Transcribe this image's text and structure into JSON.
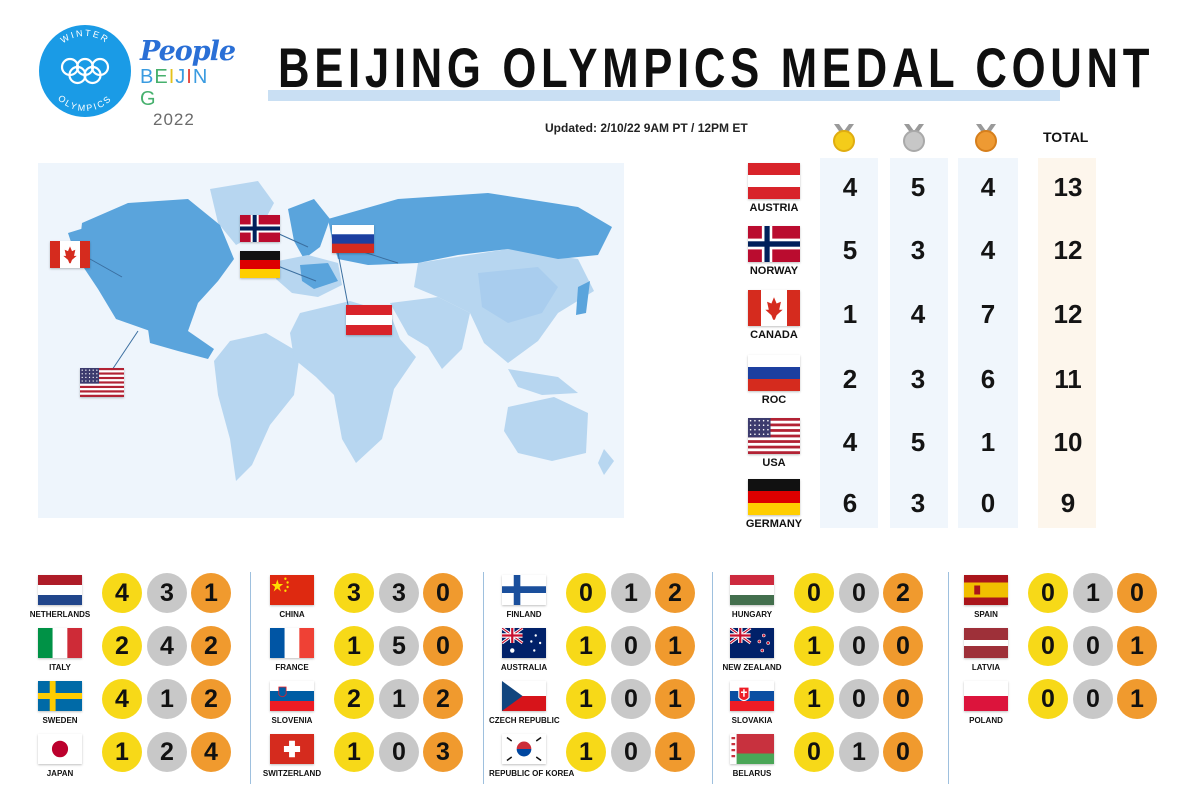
{
  "header": {
    "olympic_logo_top": "WINTER",
    "olympic_logo_bottom": "OLYMPICS",
    "brand": "People",
    "city": "BEIJING",
    "year": "2022",
    "title": "BEIJING OLYMPICS MEDAL COUNT",
    "updated": "Updated: 2/10/22 9AM PT / 12PM ET"
  },
  "colors": {
    "gold": "#f7d918",
    "silver": "#c8c8c8",
    "bronze": "#f09a2e",
    "map_land": "#b7d6f0",
    "map_highlight": "#5aa4dc",
    "accent_underline": "#c9dff3"
  },
  "table_header": {
    "gold_icon": "gold-medal-icon",
    "silver_icon": "silver-medal-icon",
    "bronze_icon": "bronze-medal-icon",
    "total_label": "TOTAL"
  },
  "top_countries": [
    {
      "name": "AUSTRIA",
      "flag": "austria",
      "gold": "4",
      "silver": "5",
      "bronze": "4",
      "total": "13"
    },
    {
      "name": "NORWAY",
      "flag": "norway",
      "gold": "5",
      "silver": "3",
      "bronze": "4",
      "total": "12"
    },
    {
      "name": "CANADA",
      "flag": "canada",
      "gold": "1",
      "silver": "4",
      "bronze": "7",
      "total": "12"
    },
    {
      "name": "ROC",
      "flag": "russia",
      "gold": "2",
      "silver": "3",
      "bronze": "6",
      "total": "11"
    },
    {
      "name": "USA",
      "flag": "usa",
      "gold": "4",
      "silver": "5",
      "bronze": "1",
      "total": "10"
    },
    {
      "name": "GERMANY",
      "flag": "germany",
      "gold": "6",
      "silver": "3",
      "bronze": "0",
      "total": "9"
    }
  ],
  "map_flags": [
    "norway",
    "russia",
    "canada",
    "germany",
    "austria",
    "usa"
  ],
  "other_countries": [
    [
      {
        "name": "NETHERLANDS",
        "flag": "netherlands",
        "gold": "4",
        "silver": "3",
        "bronze": "1"
      },
      {
        "name": "ITALY",
        "flag": "italy",
        "gold": "2",
        "silver": "4",
        "bronze": "2"
      },
      {
        "name": "SWEDEN",
        "flag": "sweden",
        "gold": "4",
        "silver": "1",
        "bronze": "2"
      },
      {
        "name": "JAPAN",
        "flag": "japan",
        "gold": "1",
        "silver": "2",
        "bronze": "4"
      }
    ],
    [
      {
        "name": "CHINA",
        "flag": "china",
        "gold": "3",
        "silver": "3",
        "bronze": "0"
      },
      {
        "name": "FRANCE",
        "flag": "france",
        "gold": "1",
        "silver": "5",
        "bronze": "0"
      },
      {
        "name": "SLOVENIA",
        "flag": "slovenia",
        "gold": "2",
        "silver": "1",
        "bronze": "2"
      },
      {
        "name": "SWITZERLAND",
        "flag": "switzerland",
        "gold": "1",
        "silver": "0",
        "bronze": "3"
      }
    ],
    [
      {
        "name": "FINLAND",
        "flag": "finland",
        "gold": "0",
        "silver": "1",
        "bronze": "2"
      },
      {
        "name": "AUSTRALIA",
        "flag": "australia",
        "gold": "1",
        "silver": "0",
        "bronze": "1"
      },
      {
        "name": "CZECH REPUBLIC",
        "flag": "czech",
        "gold": "1",
        "silver": "0",
        "bronze": "1"
      },
      {
        "name": "REPUBLIC OF KOREA",
        "flag": "korea",
        "gold": "1",
        "silver": "0",
        "bronze": "1"
      }
    ],
    [
      {
        "name": "HUNGARY",
        "flag": "hungary",
        "gold": "0",
        "silver": "0",
        "bronze": "2"
      },
      {
        "name": "NEW ZEALAND",
        "flag": "newzealand",
        "gold": "1",
        "silver": "0",
        "bronze": "0"
      },
      {
        "name": "SLOVAKIA",
        "flag": "slovakia",
        "gold": "1",
        "silver": "0",
        "bronze": "0"
      },
      {
        "name": "BELARUS",
        "flag": "belarus",
        "gold": "0",
        "silver": "1",
        "bronze": "0"
      }
    ],
    [
      {
        "name": "SPAIN",
        "flag": "spain",
        "gold": "0",
        "silver": "1",
        "bronze": "0"
      },
      {
        "name": "LATVIA",
        "flag": "latvia",
        "gold": "0",
        "silver": "0",
        "bronze": "1"
      },
      {
        "name": "POLAND",
        "flag": "poland",
        "gold": "0",
        "silver": "0",
        "bronze": "1"
      }
    ]
  ]
}
